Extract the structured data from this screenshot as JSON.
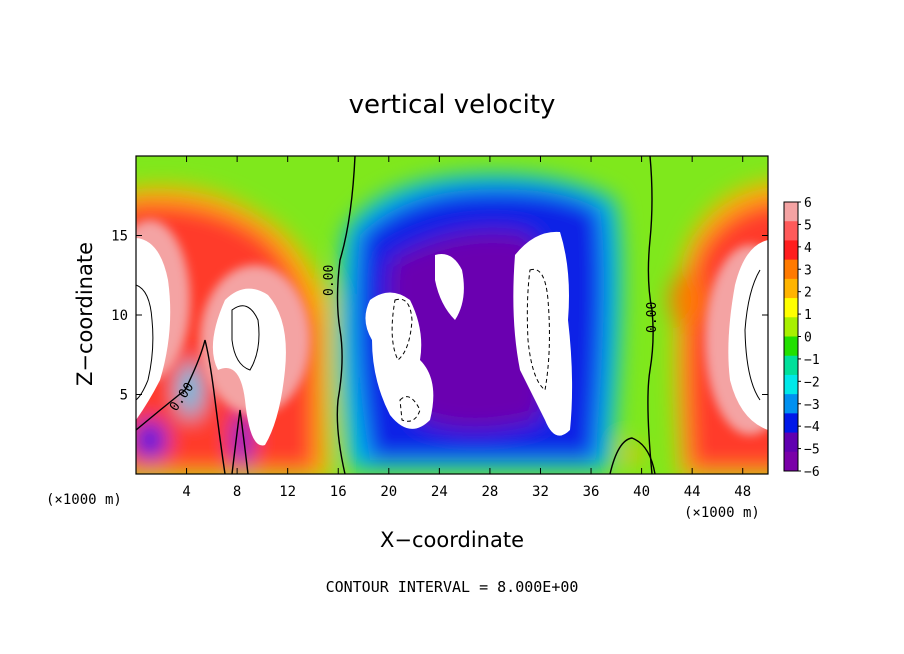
{
  "chart_data": {
    "type": "heatmap",
    "title": "vertical velocity",
    "xlabel": "X−coordinate",
    "ylabel": "Z−coordinate",
    "x_unit": "(×1000 m)",
    "xlim": [
      0,
      50
    ],
    "ylim": [
      0,
      20
    ],
    "x_ticks": [
      4,
      8,
      12,
      16,
      20,
      24,
      28,
      32,
      36,
      40,
      44,
      48
    ],
    "y_ticks": [
      5,
      10,
      15
    ],
    "colorbar": {
      "levels": [
        6,
        5,
        4,
        3,
        2,
        1,
        0,
        -1,
        -2,
        -3,
        -4,
        -5,
        -6
      ],
      "labels": [
        "6",
        "5",
        "4",
        "3",
        "2",
        "1",
        "0",
        "−1",
        "−2",
        "−3",
        "−4",
        "−5",
        "−6"
      ],
      "colors": [
        "#f4a3a3",
        "#ff5a5a",
        "#ff1e1e",
        "#ff7a00",
        "#ffb400",
        "#ffff00",
        "#a8f000",
        "#22e000",
        "#00e09a",
        "#00e8e8",
        "#0090f0",
        "#0018e8",
        "#6000b0",
        "#7a00a8"
      ]
    },
    "contour_labels": [
      "0.00",
      "0.00",
      "0.00"
    ],
    "footnote": "CONTOUR INTERVAL = 8.000E+00"
  }
}
